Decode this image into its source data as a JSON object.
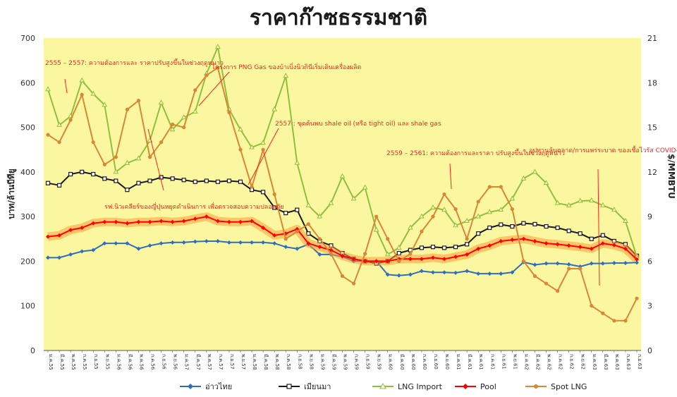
{
  "title": "ราคาก๊าซธรรมชาติ",
  "chart_data": {
    "type": "line",
    "title": "ราคาก๊าซธรรมชาติ",
    "ylabel": "บาท/ล้านบีทียู",
    "y2label": "$/MMBTU",
    "ylim": [
      0,
      700
    ],
    "y2lim": [
      0,
      21
    ],
    "yticks": [
      0,
      100,
      200,
      300,
      400,
      500,
      600,
      700
    ],
    "y2ticks": [
      0,
      3,
      6,
      9,
      12,
      15,
      18,
      21
    ],
    "grid": false,
    "legend": "bottom",
    "x": [
      "ม.ค.55",
      "มี.ค.55",
      "พ.ค.55",
      "ก.ค.55",
      "ก.ย.55",
      "พ.ย.55",
      "ม.ค.56",
      "มี.ค.56",
      "พ.ค.56",
      "ก.ค.56",
      "ก.ย.56",
      "พ.ย.56",
      "ม.ค.57",
      "มี.ค.57",
      "พ.ค.57",
      "ก.ค.57",
      "ก.ย.57",
      "พ.ย.57",
      "ม.ค.58",
      "มี.ค.58",
      "พ.ค.58",
      "ก.ค.58",
      "ก.ย.58",
      "พ.ย.58",
      "ม.ค.59",
      "มี.ค.59",
      "พ.ค.59",
      "ก.ค.59",
      "ก.ย.59",
      "พ.ย.59",
      "ม.ค.60",
      "มี.ค.60",
      "พ.ค.60",
      "ก.ค.60",
      "ก.ย.60",
      "พ.ย.60",
      "ม.ค.61",
      "มี.ค.61",
      "พ.ค.61",
      "ก.ค.61",
      "ก.ย.61",
      "พ.ย.61",
      "ม.ค.62",
      "มี.ค.62",
      "พ.ค.62",
      "ก.ค.62",
      "ก.ย.62",
      "พ.ย.62",
      "ม.ค.63",
      "มี.ค.63",
      "พ.ค.63",
      "ก.ค.63",
      "ก.ย.63"
    ],
    "series": [
      {
        "name": "อ่าวไทย",
        "axis": "left",
        "color": "#2e6fbd",
        "marker": "diamond",
        "values": [
          208,
          208,
          215,
          222,
          225,
          240,
          240,
          240,
          228,
          235,
          240,
          242,
          242,
          244,
          245,
          245,
          242,
          242,
          242,
          242,
          240,
          232,
          228,
          238,
          215,
          215,
          210,
          200,
          200,
          200,
          170,
          168,
          170,
          178,
          175,
          175,
          174,
          178,
          172,
          172,
          172,
          175,
          198,
          192,
          195,
          195,
          193,
          188,
          195,
          195,
          196,
          196,
          197
        ]
      },
      {
        "name": "เมียนมา",
        "axis": "left",
        "color": "#1a1a1a",
        "marker": "square",
        "values": [
          375,
          370,
          395,
          400,
          395,
          385,
          380,
          360,
          375,
          380,
          388,
          385,
          382,
          378,
          380,
          378,
          380,
          378,
          360,
          355,
          320,
          308,
          315,
          262,
          245,
          235,
          218,
          205,
          200,
          195,
          200,
          218,
          225,
          230,
          232,
          230,
          232,
          238,
          262,
          275,
          282,
          278,
          285,
          283,
          278,
          275,
          268,
          262,
          250,
          258,
          245,
          238,
          212
        ]
      },
      {
        "name": "LNG Import",
        "axis": "left",
        "color": "#8fbf3e",
        "marker": "triangle",
        "values": [
          585,
          505,
          525,
          605,
          575,
          550,
          400,
          420,
          430,
          470,
          555,
          495,
          522,
          535,
          620,
          680,
          540,
          495,
          455,
          465,
          540,
          615,
          420,
          325,
          300,
          330,
          390,
          340,
          365,
          270,
          215,
          230,
          275,
          300,
          320,
          315,
          280,
          290,
          300,
          310,
          315,
          340,
          385,
          400,
          375,
          330,
          325,
          335,
          336,
          325,
          315,
          290,
          210
        ]
      },
      {
        "name": "Pool",
        "axis": "left",
        "color": "#ff0000",
        "marker": "diamond",
        "values": [
          255,
          258,
          270,
          275,
          285,
          288,
          288,
          285,
          288,
          288,
          290,
          288,
          290,
          295,
          300,
          290,
          288,
          288,
          290,
          275,
          258,
          262,
          272,
          240,
          232,
          225,
          212,
          205,
          200,
          200,
          200,
          205,
          205,
          205,
          208,
          205,
          210,
          215,
          228,
          235,
          245,
          248,
          250,
          245,
          240,
          238,
          235,
          232,
          228,
          240,
          236,
          228,
          204
        ]
      },
      {
        "name": "Spot LNG",
        "axis": "right",
        "color": "#d98735",
        "marker": "circle",
        "values": [
          14.5,
          14.0,
          15.5,
          17.2,
          14.0,
          12.5,
          13.0,
          16.2,
          16.8,
          13.0,
          14.0,
          15.2,
          15.0,
          17.5,
          18.5,
          19.0,
          16.0,
          13.5,
          11.0,
          13.5,
          10.5,
          7.5,
          8.0,
          8.5,
          7.5,
          6.5,
          5.0,
          4.5,
          6.5,
          9.0,
          7.5,
          6.0,
          6.5,
          8.0,
          9.0,
          10.5,
          9.5,
          7.5,
          10.0,
          11.0,
          11.0,
          9.5,
          6.0,
          5.0,
          4.5,
          4.0,
          5.5,
          5.5,
          3.0,
          2.5,
          2.0,
          2.0,
          3.5
        ]
      }
    ],
    "annotations": [
      "2555 – 2557: ความต้องการและ ราคาปรับสูงขึ้นในช่วงฤดูหนาว",
      "โครงการ PNG Gas ของบ้าเบิ่งนิวกินีเริ่มเดินเครื่องผลิต",
      "2557 : ขุดค้นพบ shale oil (หรือ tight oil) และ shale gas",
      "รฟ.นิวเคลียร์ของญี่ปุ่นหยุดดำเนินการ เพื่อตรวจสอบความปลอดภัย",
      "2559 – 2561: ความต้องการและราคา ปรับสูงขึ้นในช่วงฤดูหนาว",
      "อุปทานล้นตลาด/การแพร่ระบาด ของเชื้อไวรัส COVID-19"
    ]
  }
}
